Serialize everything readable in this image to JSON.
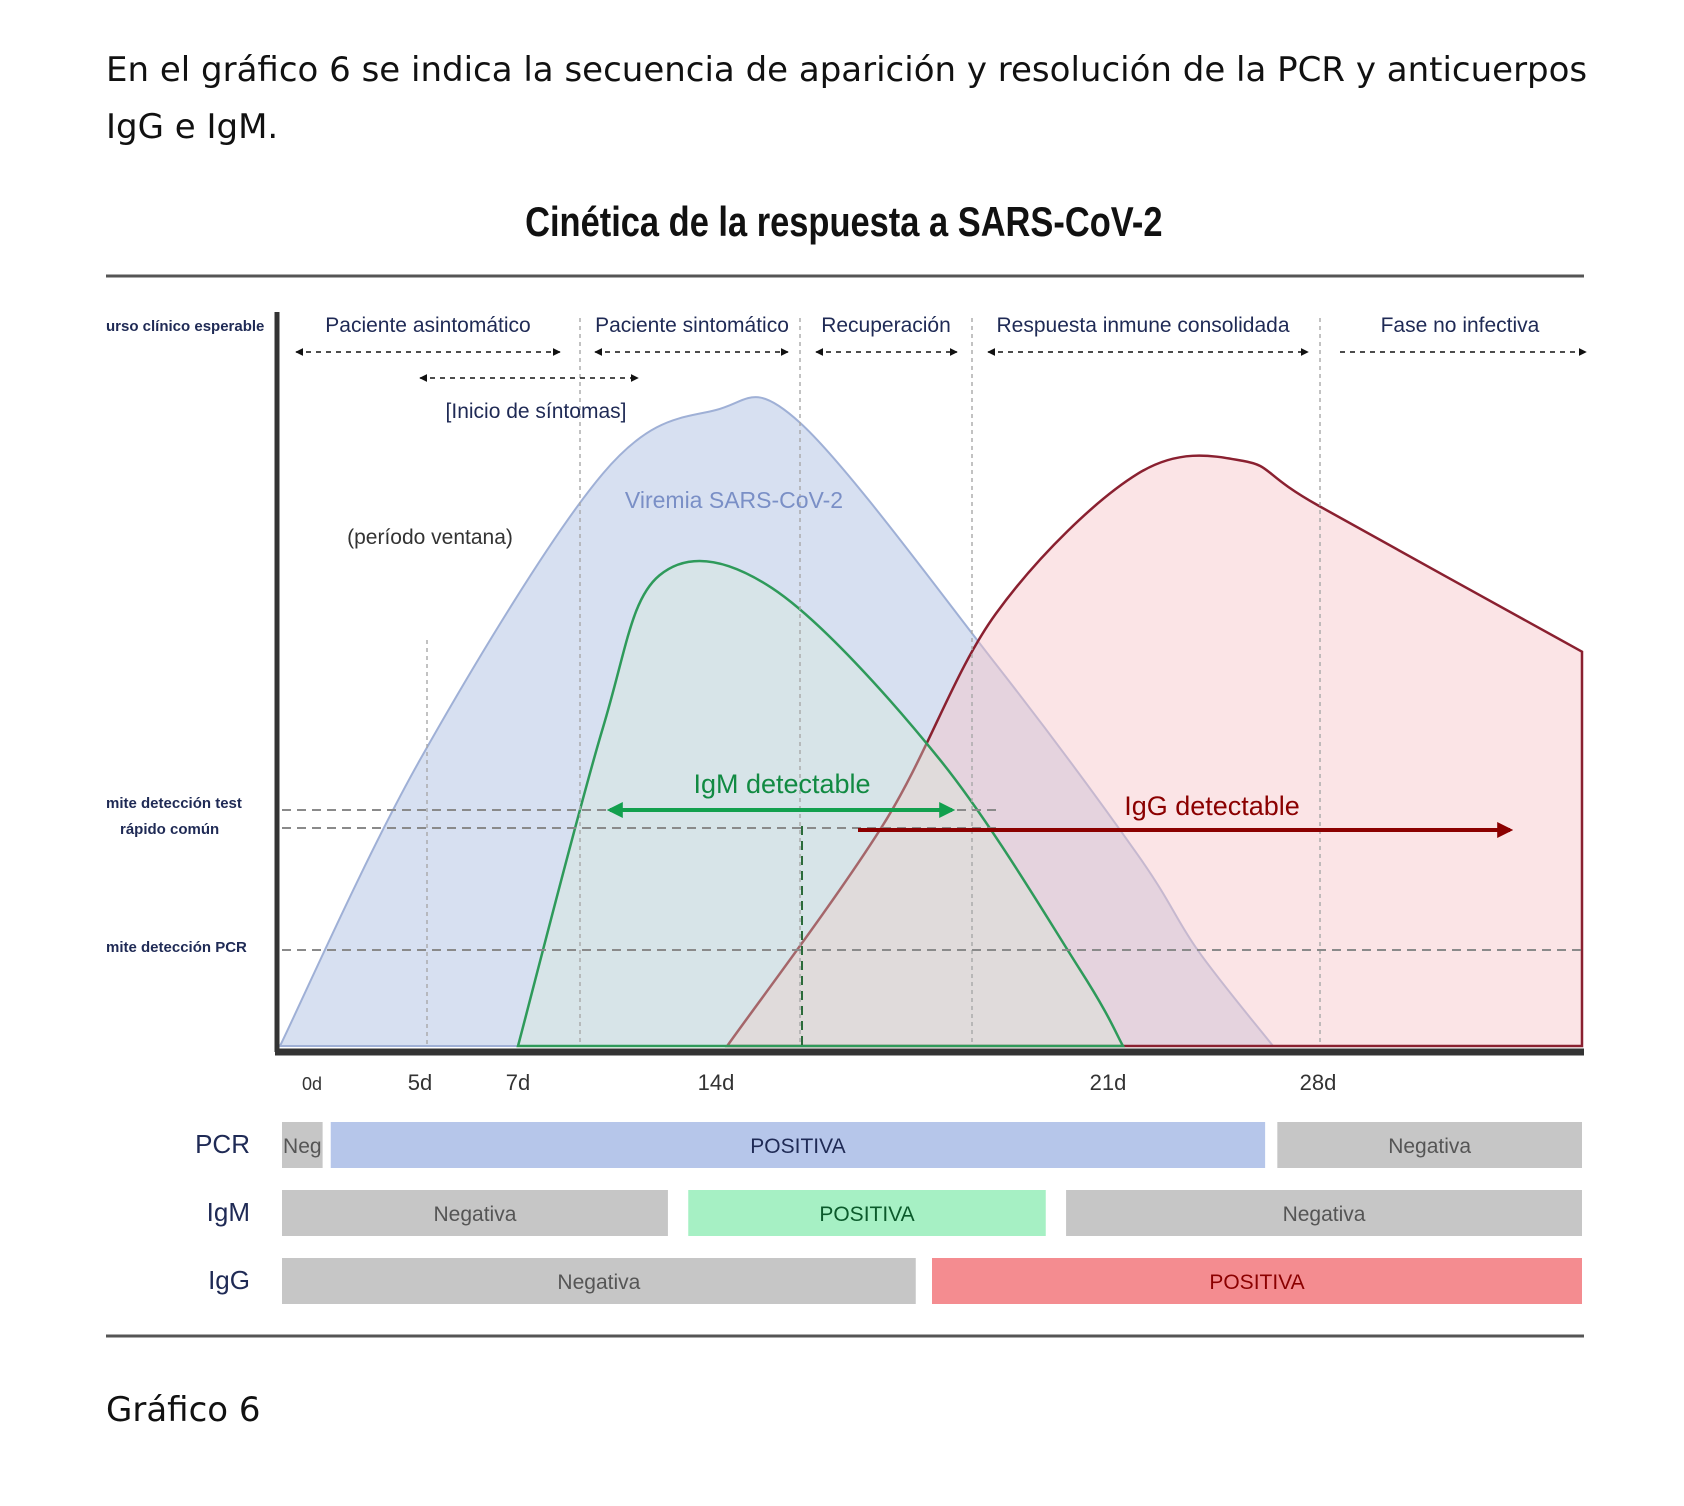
{
  "intro_text": "En el gráfico 6 se indica la secuencia de aparición y resolución  de la PCR y anticuerpos IgG e IgM.",
  "caption": "Gráfico 6",
  "chart_data": {
    "type": "area",
    "title": "Cinética de la respuesta a SARS-CoV-2",
    "colors": {
      "viremia": "#bccbe8",
      "igm": "#2e9a5a",
      "igg": "#8a2030",
      "igm_arrow": "#12a04e",
      "igg_arrow": "#8b0000",
      "bar_neg": "#c6c6c6",
      "bar_pcr_pos": "#b6c6ea",
      "bar_igm_pos": "#a6f0c4",
      "bar_igg_pos": "#f48c90",
      "phase_text": "#1f2a55",
      "axis": "#333333"
    },
    "y_axis_labels": {
      "clinical_course": "urso clínico esperable",
      "rapid_test_limit": [
        "mite detección test",
        "rápido común"
      ],
      "pcr_limit": "mite detección PCR"
    },
    "phases": [
      "Paciente asintomático",
      "Paciente sintomático",
      "Recuperación",
      "Respuesta inmune consolidada",
      "Fase no infectiva"
    ],
    "annotations": {
      "symptom_onset": "[Inicio de síntomas]",
      "window_period": "(período ventana)",
      "viremia": "Viremia SARS-CoV-2",
      "igm_detectable": "IgM detectable",
      "igg_detectable": "IgG detectable"
    },
    "x_ticks": [
      {
        "label": "0d",
        "day": 0
      },
      {
        "label": "5d",
        "day": 5
      },
      {
        "label": "7d",
        "day": 7
      },
      {
        "label": "14d",
        "day": 14
      },
      {
        "label": "21d",
        "day": 21
      },
      {
        "label": "28d",
        "day": 28
      }
    ],
    "series": [
      {
        "name": "Viremia SARS-CoV-2",
        "x": [
          0,
          5,
          10,
          14,
          15.5,
          19,
          22,
          24,
          26.5
        ],
        "y": [
          0,
          0.45,
          0.9,
          1.0,
          0.98,
          0.6,
          0.3,
          0.15,
          0
        ]
      },
      {
        "name": "IgM",
        "x": [
          7,
          10,
          12,
          15,
          18,
          20.5,
          21.5
        ],
        "y": [
          0,
          0.5,
          0.74,
          0.72,
          0.45,
          0.12,
          0
        ]
      },
      {
        "name": "IgG",
        "x": [
          14.2,
          17,
          19,
          22,
          25.5,
          28,
          32
        ],
        "y": [
          0,
          0.35,
          0.68,
          0.9,
          0.92,
          0.85,
          0.62
        ]
      }
    ],
    "detection_rows": [
      {
        "label": "PCR",
        "segments": [
          {
            "text": "Neg",
            "state": "neg",
            "start": 0,
            "end": 1
          },
          {
            "text": "POSITIVA",
            "state": "pos",
            "start": 1.2,
            "end": 24.2
          },
          {
            "text": "Negativa",
            "state": "neg",
            "start": 24.5,
            "end": 32
          }
        ]
      },
      {
        "label": "IgM",
        "segments": [
          {
            "text": "Negativa",
            "state": "neg",
            "start": 0,
            "end": 9.5
          },
          {
            "text": "POSITIVA",
            "state": "pos",
            "start": 10,
            "end": 18.8
          },
          {
            "text": "Negativa",
            "state": "neg",
            "start": 19.3,
            "end": 32
          }
        ]
      },
      {
        "label": "IgG",
        "segments": [
          {
            "text": "Negativa",
            "state": "neg",
            "start": 0,
            "end": 15.6
          },
          {
            "text": "POSITIVA",
            "state": "pos",
            "start": 16,
            "end": 32
          }
        ]
      }
    ]
  }
}
